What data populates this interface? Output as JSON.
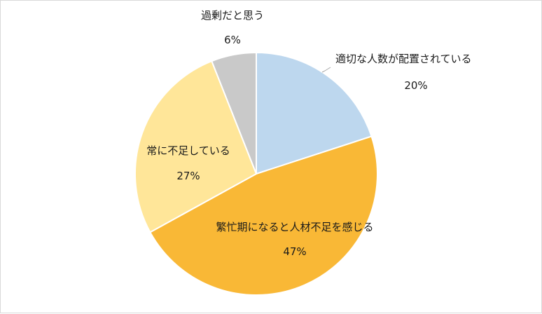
{
  "chart_data": {
    "type": "pie",
    "title": "",
    "start_angle_deg": 0,
    "direction": "clockwise",
    "slices": [
      {
        "label": "適切な人数が配置されている",
        "value": 20,
        "value_label": "20%",
        "color": "#bdd7ee"
      },
      {
        "label": "繁忙期になると人材不足を感じる",
        "value": 47,
        "value_label": "47%",
        "color": "#f9b836"
      },
      {
        "label": "常に不足している",
        "value": 27,
        "value_label": "27%",
        "color": "#ffe699"
      },
      {
        "label": "過剰だと思う",
        "value": 6,
        "value_label": "6%",
        "color": "#c9c9c9"
      }
    ]
  }
}
